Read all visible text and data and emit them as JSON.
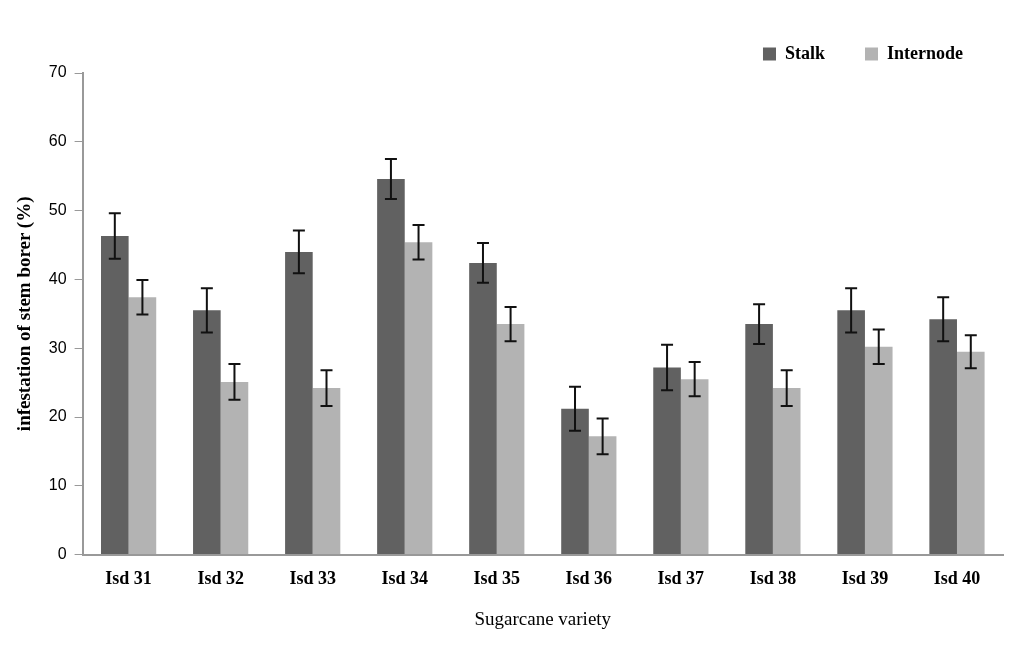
{
  "chart_data": {
    "type": "bar",
    "xlabel": "Sugarcane variety",
    "ylabel": "infestation of stem borer (%)",
    "categories": [
      "Isd 31",
      "Isd 32",
      "Isd 33",
      "Isd 34",
      "Isd 35",
      "Isd 36",
      "Isd 37",
      "Isd 38",
      "Isd 39",
      "Isd 40"
    ],
    "series": [
      {
        "name": "Stalk",
        "color": "#616161",
        "values": [
          46.3,
          35.5,
          44.0,
          54.6,
          42.4,
          21.2,
          27.2,
          33.5,
          35.5,
          34.2
        ],
        "errors": [
          3.3,
          3.2,
          3.1,
          2.9,
          2.9,
          3.2,
          3.3,
          2.9,
          3.2,
          3.2
        ]
      },
      {
        "name": "Internode",
        "color": "#b3b3b3",
        "values": [
          37.4,
          25.1,
          24.2,
          45.4,
          33.5,
          17.2,
          25.5,
          24.2,
          30.2,
          29.5
        ],
        "errors": [
          2.5,
          2.6,
          2.6,
          2.5,
          2.5,
          2.6,
          2.5,
          2.6,
          2.5,
          2.4
        ]
      }
    ],
    "ylim": [
      0,
      70
    ],
    "yticks": [
      0,
      10,
      20,
      30,
      40,
      50,
      60,
      70
    ],
    "grid": false,
    "legend": "top right"
  }
}
